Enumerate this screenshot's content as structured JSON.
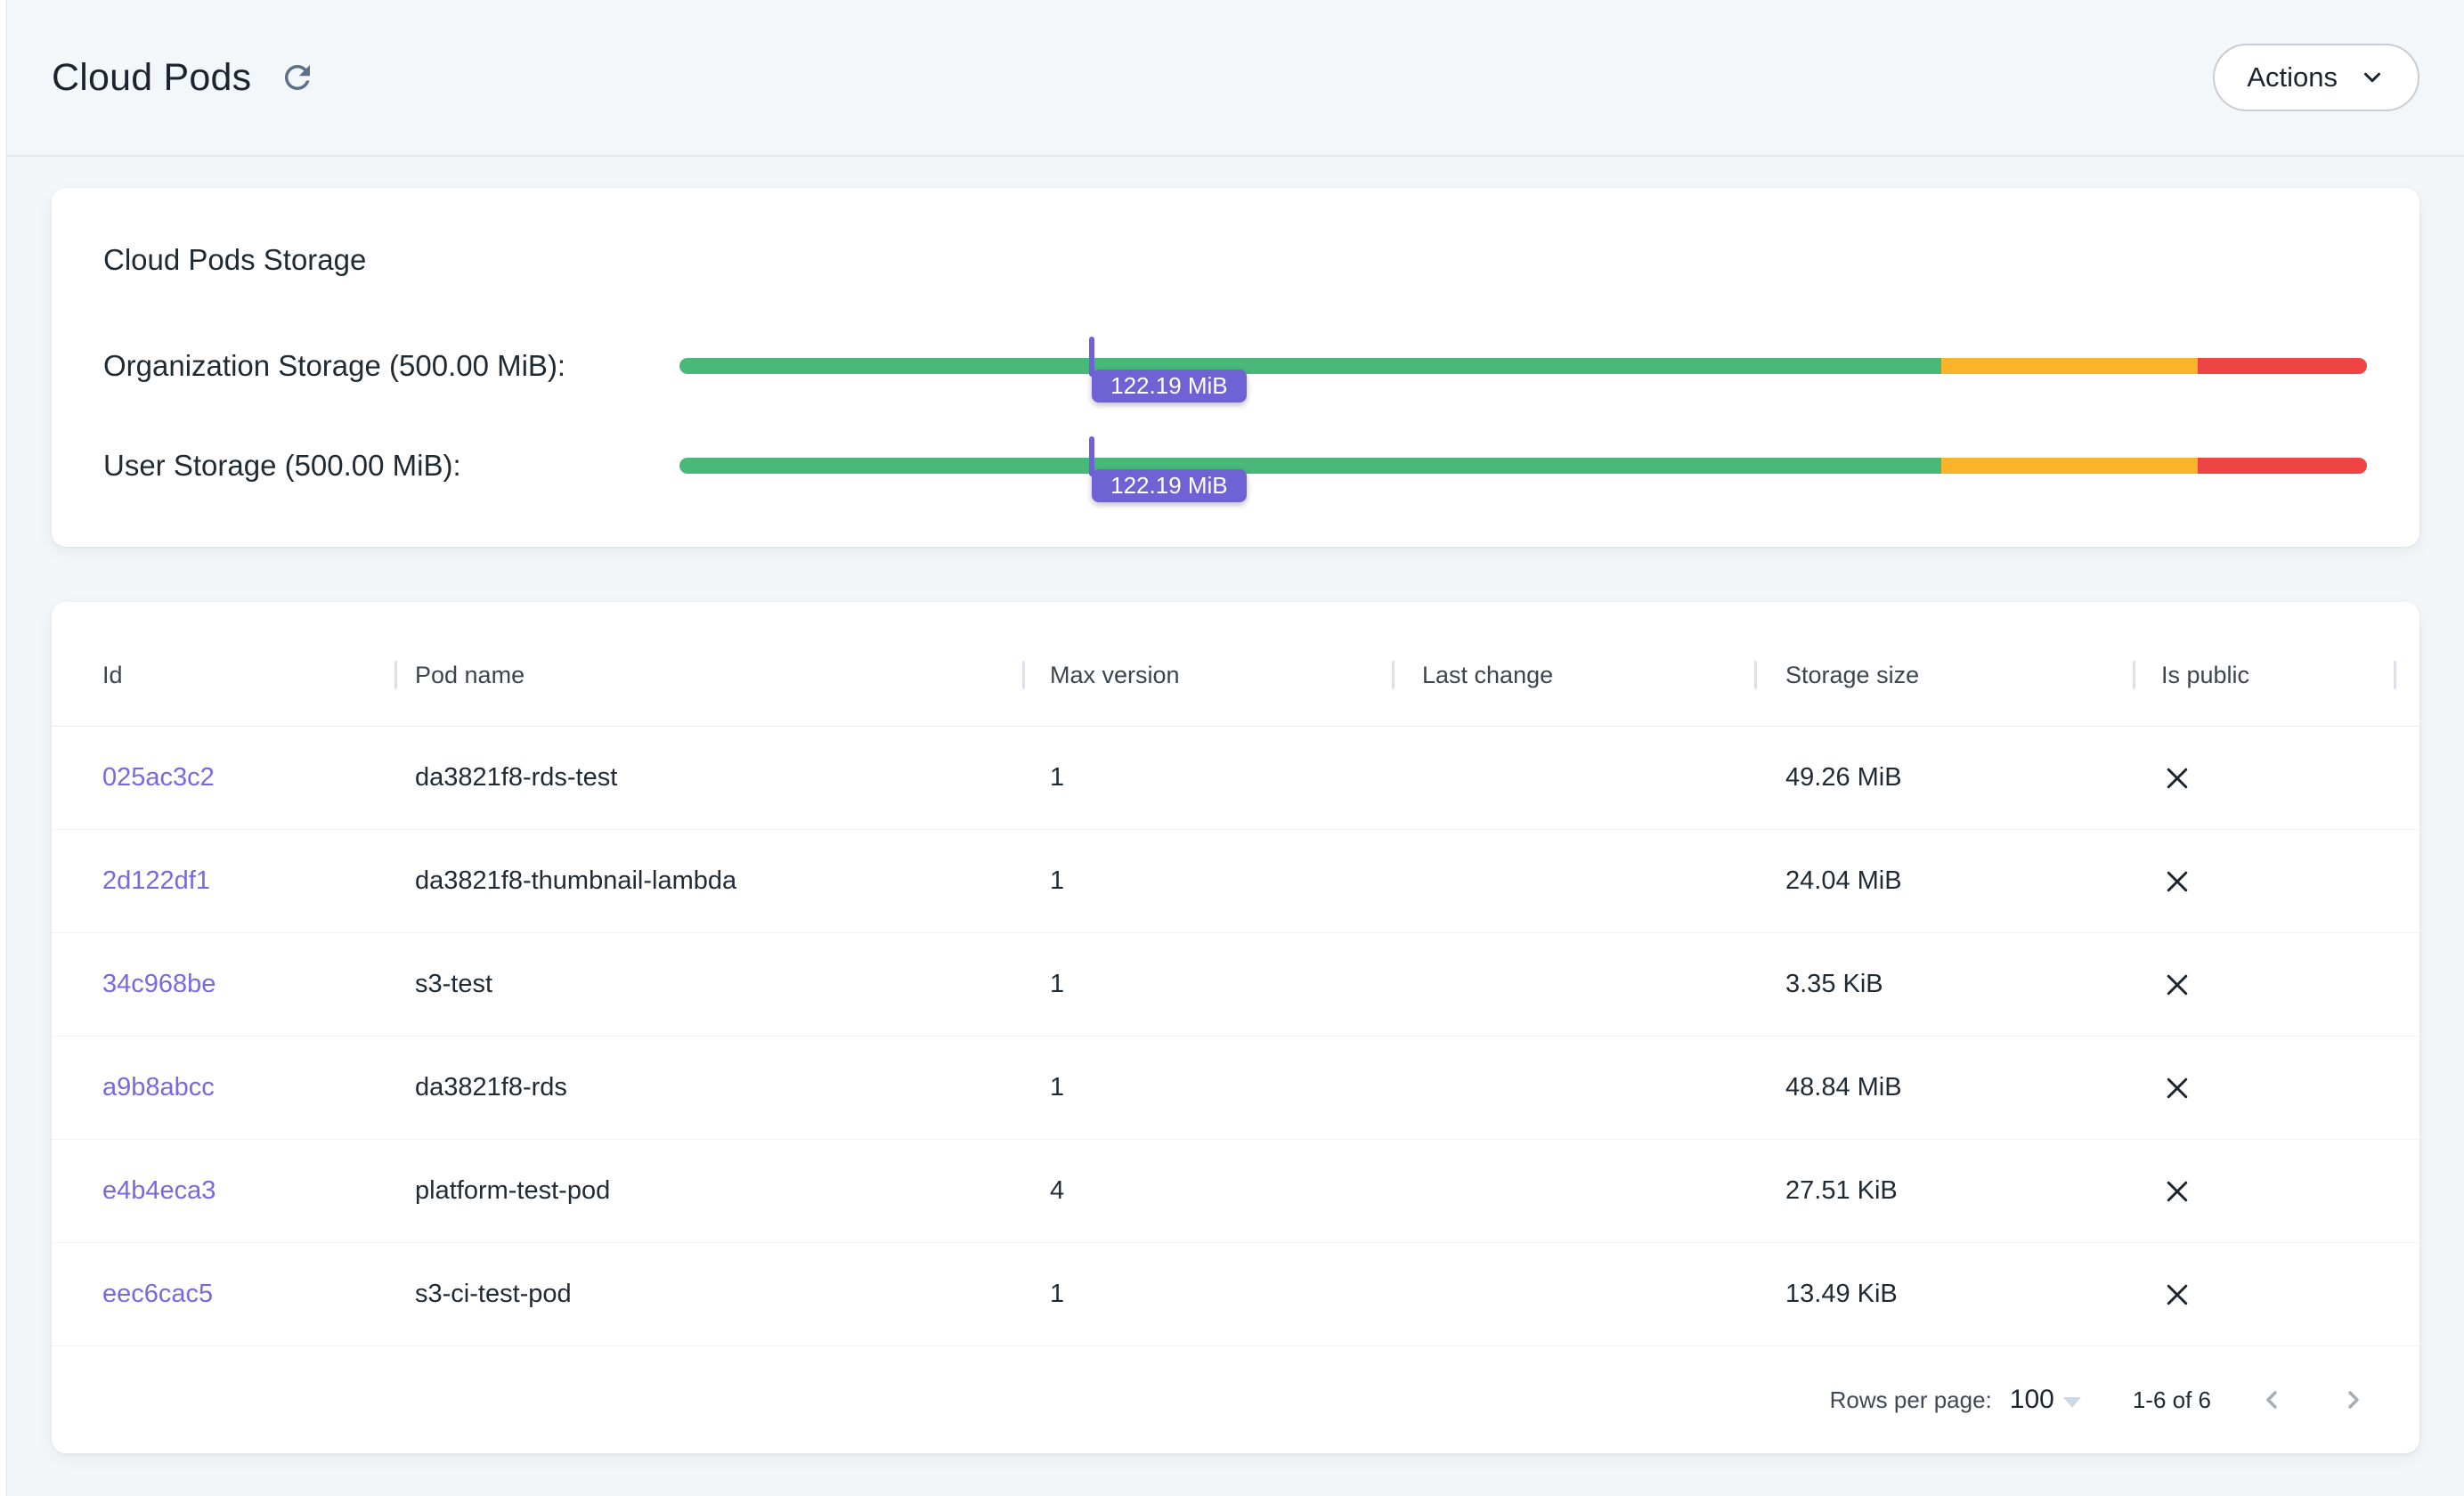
{
  "colors": {
    "page_bg": "#f2f6f9",
    "bar_green": "#4ab878",
    "bar_yellow": "#fbb32a",
    "bar_red": "#ee4444",
    "marker_purple": "#6e62d4",
    "link_purple": "#776ae0"
  },
  "header": {
    "title": "Cloud Pods",
    "refresh_icon": "refresh-arrow",
    "actions": {
      "label": "Actions",
      "icon": "chevron-down"
    }
  },
  "storage_card": {
    "title": "Cloud Pods Storage",
    "bars": [
      {
        "label": "Organization Storage (500.00 MiB):",
        "value_label": "122.19 MiB",
        "used_mib": 122.19,
        "limit_mib": 500.0,
        "marker_pct": 24.44,
        "zones_pct": {
          "green": 74.8,
          "yellow": 15.2,
          "red": 10.0
        }
      },
      {
        "label": "User Storage (500.00 MiB):",
        "value_label": "122.19 MiB",
        "used_mib": 122.19,
        "limit_mib": 500.0,
        "marker_pct": 24.44,
        "zones_pct": {
          "green": 74.8,
          "yellow": 15.2,
          "red": 10.0
        }
      }
    ]
  },
  "table": {
    "columns": [
      {
        "label": "Id"
      },
      {
        "label": "Pod name"
      },
      {
        "label": "Max version"
      },
      {
        "label": "Last change"
      },
      {
        "label": "Storage size"
      },
      {
        "label": "Is public"
      }
    ],
    "rows": [
      {
        "id": "025ac3c2",
        "pod_name": "da3821f8-rds-test",
        "max_version": "1",
        "last_change": "",
        "storage_size": "49.26 MiB",
        "is_public": false
      },
      {
        "id": "2d122df1",
        "pod_name": "da3821f8-thumbnail-lambda",
        "max_version": "1",
        "last_change": "",
        "storage_size": "24.04 MiB",
        "is_public": false
      },
      {
        "id": "34c968be",
        "pod_name": "s3-test",
        "max_version": "1",
        "last_change": "",
        "storage_size": "3.35 KiB",
        "is_public": false
      },
      {
        "id": "a9b8abcc",
        "pod_name": "da3821f8-rds",
        "max_version": "1",
        "last_change": "",
        "storage_size": "48.84 MiB",
        "is_public": false
      },
      {
        "id": "e4b4eca3",
        "pod_name": "platform-test-pod",
        "max_version": "4",
        "last_change": "",
        "storage_size": "27.51 KiB",
        "is_public": false
      },
      {
        "id": "eec6cac5",
        "pod_name": "s3-ci-test-pod",
        "max_version": "1",
        "last_change": "",
        "storage_size": "13.49 KiB",
        "is_public": false
      }
    ],
    "is_public_false_icon": "x-mark",
    "pagination": {
      "rows_per_page_label": "Rows per page:",
      "rows_per_page_value": "100",
      "range_label": "1-6 of 6",
      "prev_icon": "chevron-left",
      "next_icon": "chevron-right"
    }
  }
}
